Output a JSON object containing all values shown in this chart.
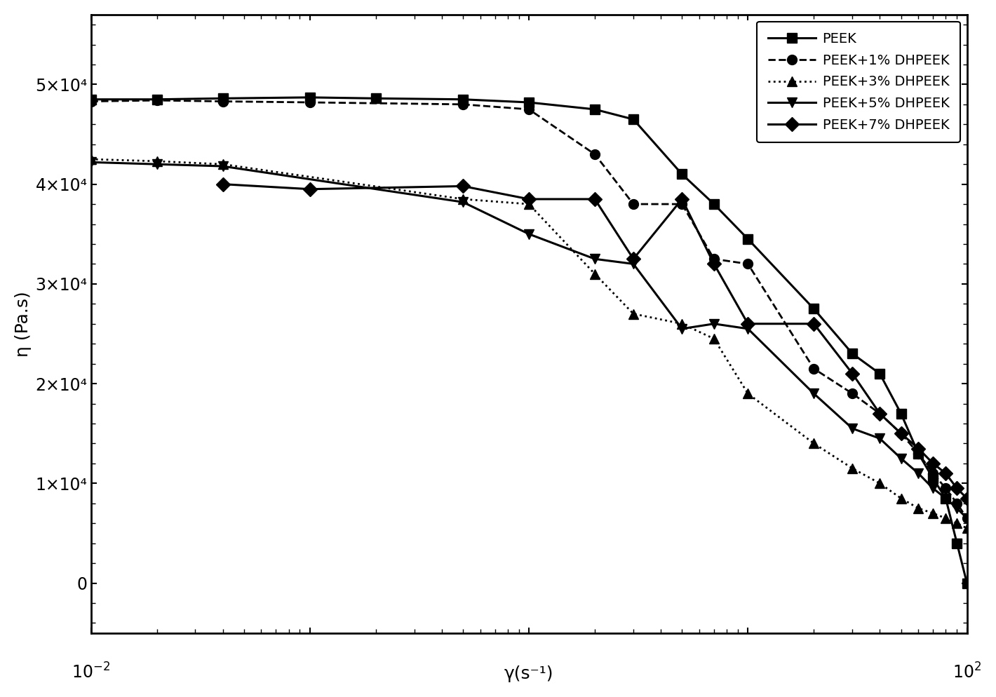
{
  "xlabel": "γ(s⁻¹)",
  "ylabel": "η (Pa.s)",
  "xlim": [
    0.01,
    100
  ],
  "ylim": [
    -5000,
    57000
  ],
  "yticks": [
    0,
    10000,
    20000,
    30000,
    40000,
    50000
  ],
  "ytick_labels": [
    "0",
    "1×10⁴",
    "2×10⁴",
    "3×10⁴",
    "4×10⁴",
    "5×10⁴"
  ],
  "background_color": "#ffffff",
  "series": [
    {
      "label": "PEEK",
      "linestyle": "-",
      "marker": "s",
      "color": "#000000",
      "linewidth": 2.2,
      "markersize": 10,
      "x": [
        0.01,
        0.02,
        0.04,
        0.1,
        0.2,
        0.5,
        1.0,
        2.0,
        3.0,
        5.0,
        7.0,
        10.0,
        20.0,
        30.0,
        40.0,
        50.0,
        60.0,
        70.0,
        80.0,
        90.0,
        100.0
      ],
      "y": [
        48500,
        48500,
        48600,
        48700,
        48600,
        48500,
        48200,
        47500,
        46500,
        41000,
        38000,
        34500,
        27500,
        23000,
        21000,
        17000,
        13000,
        10500,
        8500,
        4000,
        0
      ]
    },
    {
      "label": "PEEK+1% DHPEEK",
      "linestyle": "--",
      "marker": "o",
      "color": "#000000",
      "linewidth": 2.0,
      "markersize": 10,
      "x": [
        0.01,
        0.02,
        0.04,
        0.1,
        0.5,
        1.0,
        2.0,
        3.0,
        5.0,
        7.0,
        10.0,
        20.0,
        30.0,
        40.0,
        50.0,
        60.0,
        70.0,
        80.0,
        90.0,
        100.0
      ],
      "y": [
        48300,
        48400,
        48300,
        48200,
        48000,
        47500,
        43000,
        38000,
        38000,
        32500,
        32000,
        21500,
        19000,
        17000,
        15000,
        13000,
        11000,
        9500,
        8000,
        6500
      ]
    },
    {
      "label": "PEEK+3% DHPEEK",
      "linestyle": ":",
      "marker": "^",
      "color": "#000000",
      "linewidth": 2.0,
      "markersize": 10,
      "x": [
        0.01,
        0.02,
        0.04,
        0.5,
        1.0,
        2.0,
        3.0,
        5.0,
        7.0,
        10.0,
        20.0,
        30.0,
        40.0,
        50.0,
        60.0,
        70.0,
        80.0,
        90.0,
        100.0
      ],
      "y": [
        42500,
        42300,
        42000,
        38500,
        38000,
        31000,
        27000,
        26000,
        24500,
        19000,
        14000,
        11500,
        10000,
        8500,
        7500,
        7000,
        6500,
        6000,
        5500
      ]
    },
    {
      "label": "PEEK+5% DHPEEK",
      "linestyle": "-",
      "marker": "v",
      "color": "#000000",
      "linewidth": 2.2,
      "markersize": 10,
      "x": [
        0.01,
        0.02,
        0.04,
        0.5,
        1.0,
        2.0,
        3.0,
        5.0,
        7.0,
        10.0,
        20.0,
        30.0,
        40.0,
        50.0,
        60.0,
        70.0,
        80.0,
        90.0,
        100.0
      ],
      "y": [
        42200,
        42000,
        41800,
        38200,
        35000,
        32500,
        32000,
        25500,
        26000,
        25500,
        19000,
        15500,
        14500,
        12500,
        11000,
        9500,
        8500,
        7500,
        6500
      ]
    },
    {
      "label": "PEEK+7% DHPEEK",
      "linestyle": "-",
      "marker": "D",
      "color": "#000000",
      "linewidth": 2.2,
      "markersize": 10,
      "x": [
        0.04,
        0.1,
        0.5,
        1.0,
        2.0,
        3.0,
        5.0,
        7.0,
        10.0,
        20.0,
        30.0,
        40.0,
        50.0,
        60.0,
        70.0,
        80.0,
        90.0,
        100.0
      ],
      "y": [
        40000,
        39500,
        39800,
        38500,
        38500,
        32500,
        38500,
        32000,
        26000,
        26000,
        21000,
        17000,
        15000,
        13500,
        12000,
        11000,
        9500,
        8500
      ]
    }
  ]
}
